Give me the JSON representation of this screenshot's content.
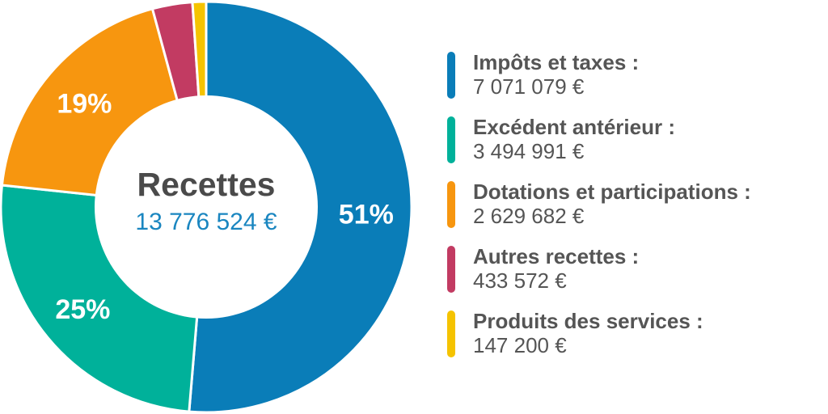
{
  "chart_data": {
    "type": "pie",
    "donut": true,
    "center_title": "Recettes",
    "center_total": "13 776 524 €",
    "slices": [
      {
        "name": "Impôts et taxes",
        "label": "Impôts et taxes :",
        "value": 7071079,
        "value_text": "7 071 079 €",
        "percent": 51,
        "percent_text": "51%",
        "color": "#0a7db8"
      },
      {
        "name": "Excédent antérieur",
        "label": "Excédent antérieur :",
        "value": 3494991,
        "value_text": "3 494 991 €",
        "percent": 25,
        "percent_text": "25%",
        "color": "#00b19a"
      },
      {
        "name": "Dotations et participations",
        "label": "Dotations et participations :",
        "value": 2629682,
        "value_text": "2 629 682 €",
        "percent": 19,
        "percent_text": "19%",
        "color": "#f7960f"
      },
      {
        "name": "Autres recettes",
        "label": "Autres recettes :",
        "value": 433572,
        "value_text": "433 572 €",
        "percent": 3,
        "percent_text": "",
        "color": "#c23b62"
      },
      {
        "name": "Produits des services",
        "label": "Produits des services :",
        "value": 147200,
        "value_text": "147 200 €",
        "percent": 1,
        "percent_text": "",
        "color": "#f5c300"
      }
    ]
  },
  "colors": {
    "center_total": "#1a86c0",
    "text": "#555555",
    "title": "#4a4a4a"
  }
}
